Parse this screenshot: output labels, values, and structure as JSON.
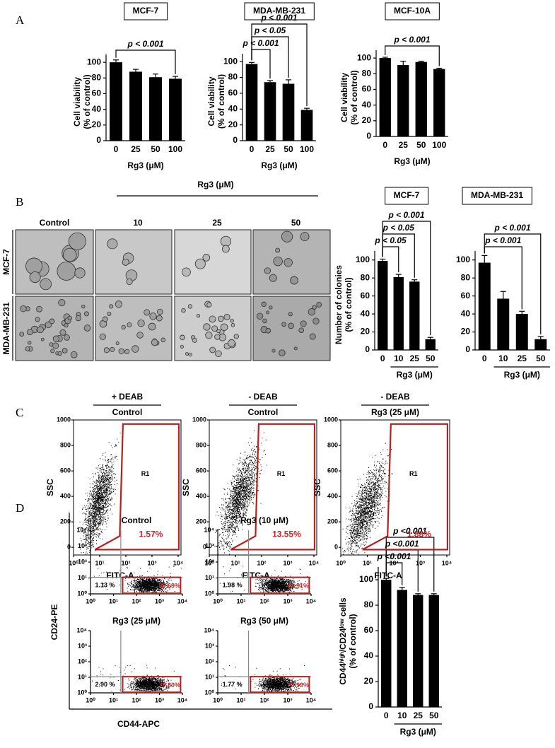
{
  "panel_labels": [
    "A",
    "B",
    "C",
    "D"
  ],
  "chart_data": [
    {
      "type": "bar",
      "title": "MCF-7",
      "ylabel": [
        "Cell viability",
        "(% of control)"
      ],
      "xlabel": "Rg3 (μM)",
      "categories": [
        "0",
        "25",
        "50",
        "100"
      ],
      "values": [
        100,
        88,
        81,
        79
      ],
      "errors": [
        3,
        3,
        4,
        3
      ],
      "color": "#000000",
      "ylim": [
        0,
        110
      ],
      "yticks": [
        0,
        20,
        40,
        60,
        80,
        100
      ],
      "comparisons": [
        {
          "pair": [
            0,
            3
          ],
          "label": "p < 0.001"
        }
      ]
    },
    {
      "type": "bar",
      "title": "MDA-MB-231",
      "ylabel": [
        "Cell viability",
        "(% of control)"
      ],
      "xlabel": "Rg3 (μM)",
      "categories": [
        "0",
        "25",
        "50",
        "100"
      ],
      "values": [
        97,
        74,
        72,
        39
      ],
      "errors": [
        2,
        2,
        5,
        2
      ],
      "color": "#000000",
      "ylim": [
        0,
        110
      ],
      "yticks": [
        0,
        20,
        40,
        60,
        80,
        100
      ],
      "comparisons": [
        {
          "pair": [
            0,
            1
          ],
          "label": "p < 0.001"
        },
        {
          "pair": [
            0,
            2
          ],
          "label": "p < 0.05"
        },
        {
          "pair": [
            0,
            3
          ],
          "label": "p < 0.001"
        }
      ]
    },
    {
      "type": "bar",
      "title": "MCF-10A",
      "ylabel": [
        "Cell viability",
        "(% of control)"
      ],
      "xlabel": "Rg3 (μM)",
      "categories": [
        "0",
        "25",
        "50",
        "100"
      ],
      "values": [
        100,
        91,
        95,
        86
      ],
      "errors": [
        1,
        5,
        1,
        1
      ],
      "color": "#000000",
      "ylim": [
        0,
        110
      ],
      "yticks": [
        0,
        20,
        40,
        60,
        80,
        100
      ],
      "comparisons": [
        {
          "pair": [
            0,
            3
          ],
          "label": "p < 0.001"
        }
      ]
    },
    {
      "type": "bar",
      "title": "MCF-7",
      "ylabel": [
        "Number of colonies",
        "(% of control)"
      ],
      "xlabel": "Rg3 (μM)",
      "categories": [
        "0",
        "10",
        "25",
        "50"
      ],
      "values": [
        99,
        81,
        76,
        12
      ],
      "errors": [
        2,
        3,
        2,
        2
      ],
      "color": "#000000",
      "ylim": [
        0,
        110
      ],
      "yticks": [
        0,
        20,
        40,
        60,
        80,
        100
      ],
      "comparisons": [
        {
          "pair": [
            0,
            1
          ],
          "label": "p < 0.05"
        },
        {
          "pair": [
            0,
            2
          ],
          "label": "p < 0.05"
        },
        {
          "pair": [
            0,
            3
          ],
          "label": "p < 0.001"
        }
      ]
    },
    {
      "type": "bar",
      "title": "MDA-MB-231",
      "xlabel": "Rg3 (μM)",
      "categories": [
        "0",
        "10",
        "25",
        "50"
      ],
      "values": [
        97,
        57,
        40,
        12
      ],
      "errors": [
        8,
        8,
        3,
        3
      ],
      "color": "#000000",
      "ylim": [
        0,
        110
      ],
      "yticks": [
        0,
        20,
        40,
        60,
        80,
        100
      ],
      "comparisons": [
        {
          "pair": [
            0,
            2
          ],
          "label": "p < 0.001"
        },
        {
          "pair": [
            0,
            3
          ],
          "label": "p < 0.001"
        }
      ]
    },
    {
      "type": "bar",
      "ylabel": [
        "CD44ʰⁱᵍʰ/CD24ˡᵒʷ cells",
        "(% of control)"
      ],
      "xlabel": "Rg3 (μM)",
      "categories": [
        "0",
        "10",
        "25",
        "50"
      ],
      "values": [
        100,
        92,
        88,
        88
      ],
      "errors": [
        1,
        2,
        1,
        1
      ],
      "color": "#000000",
      "ylim": [
        0,
        110
      ],
      "yticks": [
        0,
        20,
        40,
        60,
        80,
        100
      ],
      "comparisons": [
        {
          "pair": [
            0,
            1
          ],
          "label": "p <0.001"
        },
        {
          "pair": [
            0,
            2
          ],
          "label": "p <0.001"
        },
        {
          "pair": [
            0,
            3
          ],
          "label": "p <0.001"
        }
      ]
    }
  ],
  "colony_images": {
    "treatment_label": "Rg3 (μM)",
    "columns": [
      "Control",
      "10",
      "25",
      "50"
    ],
    "rows": [
      "MCF-7",
      "MDA-MB-231"
    ]
  },
  "aldefluor_plots": {
    "x_label": "FITC-A",
    "y_label": "SSC",
    "x_scale": "log",
    "xlim": [
      1,
      10000
    ],
    "xticks": [
      {
        "value": 1,
        "label": "10⁰"
      },
      {
        "value": 10,
        "label": "10¹"
      },
      {
        "value": 100,
        "label": "10²"
      },
      {
        "value": 1000,
        "label": "10³"
      },
      {
        "value": 10000,
        "label": "10⁴"
      }
    ],
    "ylim": [
      -60,
      1000
    ],
    "yticks": [
      0,
      200,
      400,
      600,
      800,
      1000
    ],
    "plots": [
      {
        "header": "+ DEAB",
        "condition": "Control",
        "gate": "R1",
        "percent": "1.57%"
      },
      {
        "header": "- DEAB",
        "condition": "Control",
        "gate": "R1",
        "percent": "13.55%"
      },
      {
        "header": "- DEAB",
        "condition": "Rg3 (25 μM)",
        "gate": "R1",
        "percent": "1.88%"
      }
    ]
  },
  "cd44_plots": {
    "x_label": "CD44-APC",
    "y_label": "CD24-PE",
    "scale": "log",
    "lim": [
      1,
      10000
    ],
    "ticks": [
      {
        "value": 1,
        "label": "10⁰"
      },
      {
        "value": 10,
        "label": "10¹"
      },
      {
        "value": 100,
        "label": "10²"
      },
      {
        "value": 1000,
        "label": "10³"
      },
      {
        "value": 10000,
        "label": "10⁴"
      }
    ],
    "plots": [
      {
        "title": "Control",
        "low_percent": "1.13 %",
        "gate_percent": "80.69%"
      },
      {
        "title": "Rg3 (10 μM)",
        "low_percent": "1.98 %",
        "gate_percent": "81.91%"
      },
      {
        "title": "Rg3 (25 μM)",
        "low_percent": "2.90 %",
        "gate_percent": "79.80%"
      },
      {
        "title": "Rg3 (50 μM)",
        "low_percent": "1.77 %",
        "gate_percent": "78.99%"
      }
    ]
  }
}
